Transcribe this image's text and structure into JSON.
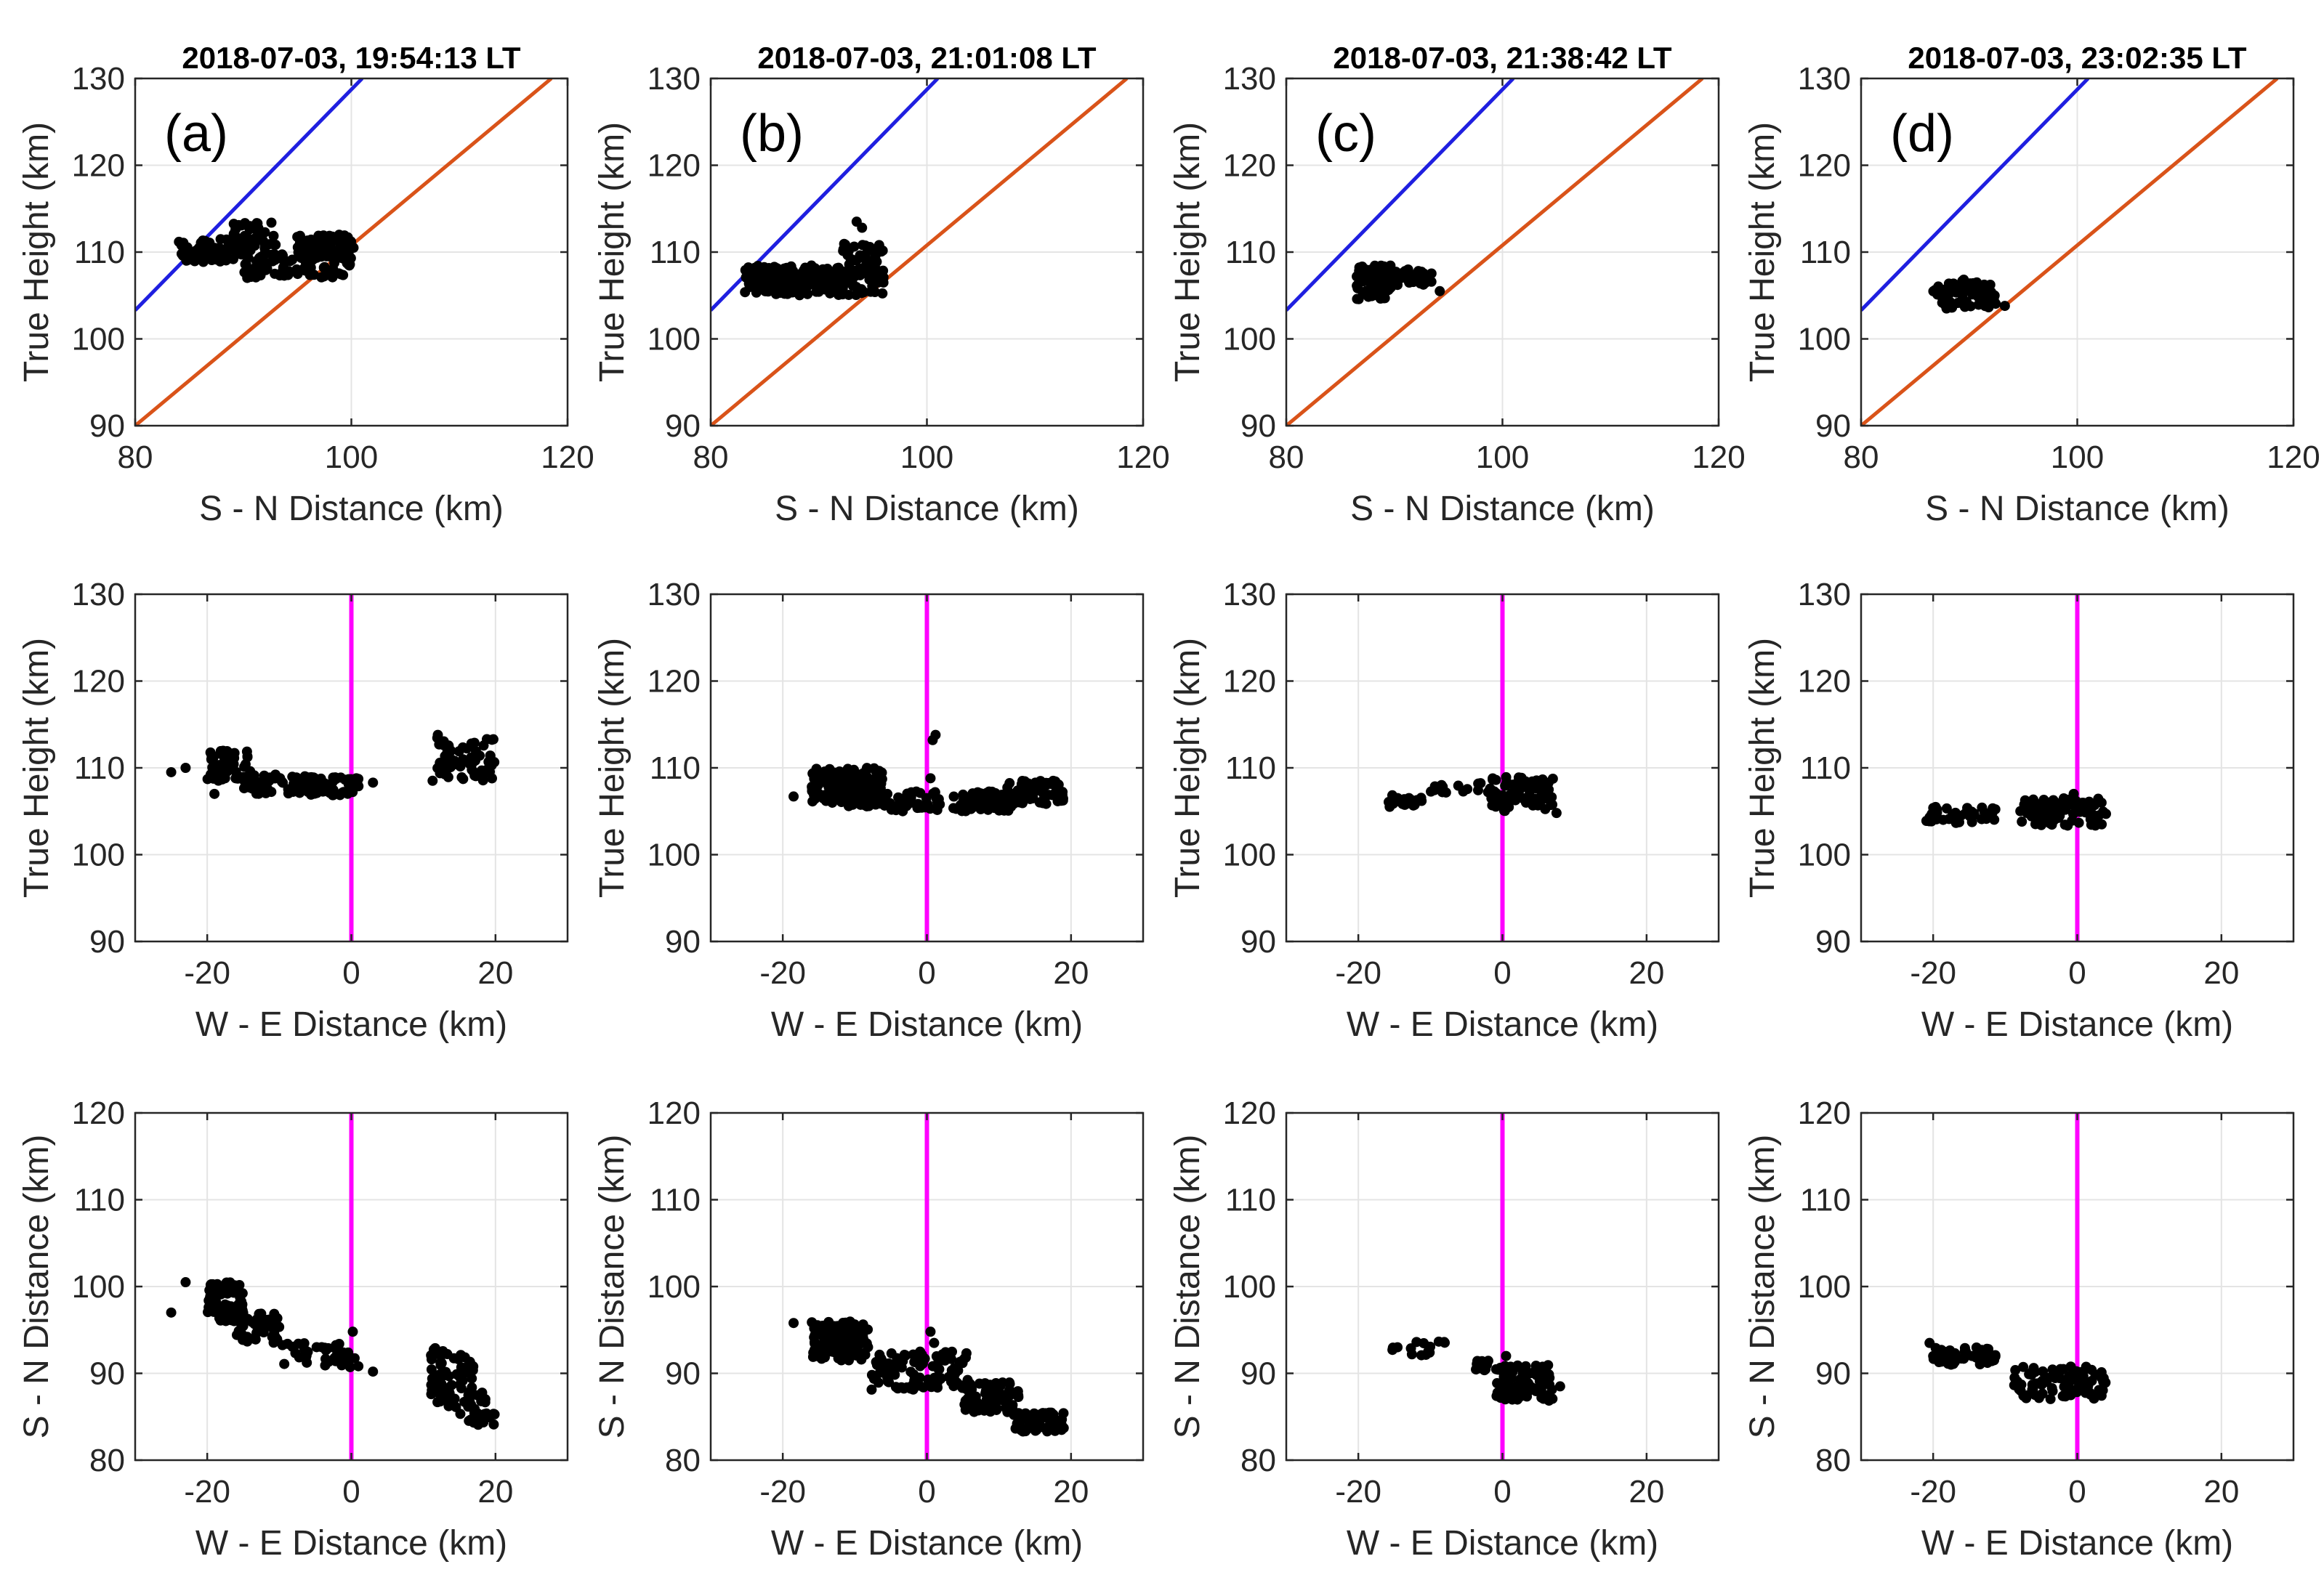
{
  "chart_data": [
    {
      "id": "a",
      "col": 0,
      "row": 0,
      "type": "scatter",
      "title": "2018-07-03, 19:54:13 LT",
      "panel_label": "(a)",
      "xlabel": "S - N  Distance (km)",
      "ylabel": "True Height (km)",
      "xlim": [
        80,
        120
      ],
      "ylim": [
        90,
        130
      ],
      "xticks": [
        80,
        100,
        120
      ],
      "yticks": [
        90,
        100,
        110,
        120,
        130
      ],
      "grid": true,
      "lines": [
        {
          "name": "upper-limit",
          "color": "#1f1fe0",
          "x": [
            80,
            101
          ],
          "y": [
            103.3,
            130
          ]
        },
        {
          "name": "lower-limit",
          "color": "#d95319",
          "x": [
            80,
            118.5
          ],
          "y": [
            90,
            130
          ]
        }
      ],
      "clusters": [
        {
          "n": 60,
          "x": [
            84,
            90
          ],
          "y": [
            108.8,
            111.5
          ],
          "seed": 11
        },
        {
          "n": 50,
          "x": [
            89,
            93
          ],
          "y": [
            110,
            113.5
          ],
          "seed": 12
        },
        {
          "n": 110,
          "x": [
            90,
            100
          ],
          "y": [
            107,
            110
          ],
          "seed": 13
        },
        {
          "n": 70,
          "x": [
            95,
            100
          ],
          "y": [
            109.5,
            112
          ],
          "seed": 14
        }
      ],
      "points": [
        [
          84.3,
          109.8
        ],
        [
          100.2,
          110.5
        ]
      ]
    },
    {
      "id": "b",
      "col": 1,
      "row": 0,
      "type": "scatter",
      "title": "2018-07-03, 21:01:08 LT",
      "panel_label": "(b)",
      "xlabel": "S - N  Distance (km)",
      "ylabel": "True Height (km)",
      "xlim": [
        80,
        120
      ],
      "ylim": [
        90,
        130
      ],
      "xticks": [
        80,
        100,
        120
      ],
      "yticks": [
        90,
        100,
        110,
        120,
        130
      ],
      "grid": true,
      "lines": [
        {
          "name": "upper-limit",
          "color": "#1f1fe0",
          "x": [
            80,
            101
          ],
          "y": [
            103.3,
            130
          ]
        },
        {
          "name": "lower-limit",
          "color": "#d95319",
          "x": [
            80,
            118.5
          ],
          "y": [
            90,
            130
          ]
        }
      ],
      "clusters": [
        {
          "n": 90,
          "x": [
            83,
            88
          ],
          "y": [
            105.3,
            108.5
          ],
          "seed": 21
        },
        {
          "n": 130,
          "x": [
            86,
            96
          ],
          "y": [
            105,
            108.5
          ],
          "seed": 22
        },
        {
          "n": 50,
          "x": [
            92,
            96
          ],
          "y": [
            107,
            111
          ],
          "seed": 23
        }
      ],
      "points": [
        [
          93.5,
          113.5
        ],
        [
          94,
          112.8
        ],
        [
          95.5,
          106.5
        ]
      ]
    },
    {
      "id": "c",
      "col": 2,
      "row": 0,
      "type": "scatter",
      "title": "2018-07-03, 21:38:42 LT",
      "panel_label": "(c)",
      "xlabel": "S - N  Distance (km)",
      "ylabel": "True Height (km)",
      "xlim": [
        80,
        120
      ],
      "ylim": [
        90,
        130
      ],
      "xticks": [
        80,
        100,
        120
      ],
      "yticks": [
        90,
        100,
        110,
        120,
        130
      ],
      "grid": true,
      "lines": [
        {
          "name": "upper-limit",
          "color": "#1f1fe0",
          "x": [
            80,
            101
          ],
          "y": [
            103.3,
            130
          ]
        },
        {
          "name": "lower-limit",
          "color": "#d95319",
          "x": [
            80,
            118.5
          ],
          "y": [
            90,
            130
          ]
        }
      ],
      "clusters": [
        {
          "n": 80,
          "x": [
            86.5,
            90
          ],
          "y": [
            104.5,
            108.5
          ],
          "seed": 31
        },
        {
          "n": 40,
          "x": [
            89,
            93.5
          ],
          "y": [
            106,
            108
          ],
          "seed": 32
        }
      ],
      "points": [
        [
          94.2,
          105.5
        ]
      ]
    },
    {
      "id": "d",
      "col": 3,
      "row": 0,
      "type": "scatter",
      "title": "2018-07-03, 23:02:35 LT",
      "panel_label": "(d)",
      "xlabel": "S - N  Distance (km)",
      "ylabel": "True Height (km)",
      "xlim": [
        80,
        120
      ],
      "ylim": [
        90,
        130
      ],
      "xticks": [
        80,
        100,
        120
      ],
      "yticks": [
        90,
        100,
        110,
        120,
        130
      ],
      "grid": true,
      "lines": [
        {
          "name": "upper-limit",
          "color": "#1f1fe0",
          "x": [
            80,
            101
          ],
          "y": [
            103.3,
            130
          ]
        },
        {
          "name": "lower-limit",
          "color": "#d95319",
          "x": [
            80,
            118.5
          ],
          "y": [
            90,
            130
          ]
        }
      ],
      "clusters": [
        {
          "n": 70,
          "x": [
            86.5,
            92.5
          ],
          "y": [
            103.5,
            106.5
          ],
          "seed": 41
        },
        {
          "n": 15,
          "x": [
            89,
            91
          ],
          "y": [
            105.5,
            107
          ],
          "seed": 42
        }
      ],
      "points": [
        [
          93.3,
          103.8
        ]
      ]
    },
    {
      "id": "a-we-height",
      "col": 0,
      "row": 1,
      "type": "scatter",
      "xlabel": "W - E  Distance (km)",
      "ylabel": "True Height (km)",
      "xlim": [
        -30,
        30
      ],
      "ylim": [
        90,
        130
      ],
      "xticks": [
        -20,
        0,
        20
      ],
      "yticks": [
        90,
        100,
        110,
        120,
        130
      ],
      "grid": true,
      "vline": {
        "x": 0,
        "color": "#ff00ff"
      },
      "clusters": [
        {
          "n": 60,
          "x": [
            -20,
            -14
          ],
          "y": [
            108.5,
            112
          ],
          "seed": 51
        },
        {
          "n": 60,
          "x": [
            -15,
            -5
          ],
          "y": [
            107,
            109.5
          ],
          "seed": 52
        },
        {
          "n": 50,
          "x": [
            -6,
            1
          ],
          "y": [
            106.8,
            109
          ],
          "seed": 53
        },
        {
          "n": 60,
          "x": [
            11,
            20
          ],
          "y": [
            108.5,
            113.5
          ],
          "seed": 54
        }
      ],
      "points": [
        [
          -25,
          109.5
        ],
        [
          -23,
          110
        ],
        [
          -19,
          107
        ],
        [
          3,
          108.3
        ],
        [
          12,
          113.8
        ]
      ]
    },
    {
      "id": "b-we-height",
      "col": 1,
      "row": 1,
      "type": "scatter",
      "xlabel": "W - E  Distance (km)",
      "ylabel": "True Height (km)",
      "xlim": [
        -30,
        30
      ],
      "ylim": [
        90,
        130
      ],
      "xticks": [
        -20,
        0,
        20
      ],
      "yticks": [
        90,
        100,
        110,
        120,
        130
      ],
      "grid": true,
      "vline": {
        "x": 0,
        "color": "#ff00ff"
      },
      "clusters": [
        {
          "n": 160,
          "x": [
            -16,
            -6
          ],
          "y": [
            105.5,
            110
          ],
          "seed": 61
        },
        {
          "n": 110,
          "x": [
            -6,
            12
          ],
          "y": [
            105,
            107.3
          ],
          "seed": 62
        },
        {
          "n": 70,
          "x": [
            11,
            19
          ],
          "y": [
            105.8,
            108.5
          ],
          "seed": 63
        }
      ],
      "points": [
        [
          -18.5,
          106.7
        ],
        [
          0.8,
          113.2
        ],
        [
          1.2,
          113.8
        ],
        [
          0.5,
          108.8
        ]
      ]
    },
    {
      "id": "c-we-height",
      "col": 2,
      "row": 1,
      "type": "scatter",
      "xlabel": "W - E  Distance (km)",
      "ylabel": "True Height (km)",
      "xlim": [
        -30,
        30
      ],
      "ylim": [
        90,
        130
      ],
      "xticks": [
        -20,
        0,
        20
      ],
      "yticks": [
        90,
        100,
        110,
        120,
        130
      ],
      "grid": true,
      "vline": {
        "x": 0,
        "color": "#ff00ff"
      },
      "clusters": [
        {
          "n": 20,
          "x": [
            -16,
            -11
          ],
          "y": [
            105.5,
            107
          ],
          "seed": 71
        },
        {
          "n": 15,
          "x": [
            -10,
            -2
          ],
          "y": [
            107,
            108.3
          ],
          "seed": 72
        },
        {
          "n": 80,
          "x": [
            -2,
            7
          ],
          "y": [
            105,
            109
          ],
          "seed": 73
        }
      ],
      "points": [
        [
          7.5,
          104.8
        ]
      ]
    },
    {
      "id": "d-we-height",
      "col": 3,
      "row": 1,
      "type": "scatter",
      "xlabel": "W - E  Distance (km)",
      "ylabel": "True Height (km)",
      "xlim": [
        -30,
        30
      ],
      "ylim": [
        90,
        130
      ],
      "xticks": [
        -20,
        0,
        20
      ],
      "yticks": [
        90,
        100,
        110,
        120,
        130
      ],
      "grid": true,
      "vline": {
        "x": 0,
        "color": "#ff00ff"
      },
      "clusters": [
        {
          "n": 40,
          "x": [
            -21,
            -11
          ],
          "y": [
            103.5,
            105.5
          ],
          "seed": 81
        },
        {
          "n": 90,
          "x": [
            -9,
            4
          ],
          "y": [
            103.3,
            106.5
          ],
          "seed": 82
        }
      ],
      "points": [
        [
          -0.5,
          107
        ]
      ]
    },
    {
      "id": "a-we-sn",
      "col": 0,
      "row": 2,
      "type": "scatter",
      "xlabel": "W - E  Distance (km)",
      "ylabel": "S - N  Distance (km)",
      "xlim": [
        -30,
        30
      ],
      "ylim": [
        80,
        120
      ],
      "xticks": [
        -20,
        0,
        20
      ],
      "yticks": [
        80,
        90,
        100,
        110,
        120
      ],
      "grid": true,
      "vline": {
        "x": 0,
        "color": "#ff00ff"
      },
      "clusters": [
        {
          "n": 80,
          "x": [
            -20,
            -15
          ],
          "y": [
            96,
            100.5
          ],
          "seed": 91
        },
        {
          "n": 50,
          "x": [
            -16,
            -10
          ],
          "y": [
            93.5,
            97
          ],
          "seed": 92
        },
        {
          "n": 40,
          "x": [
            -10,
            1
          ],
          "y": [
            90.5,
            93.5
          ],
          "seed": 93
        },
        {
          "n": 70,
          "x": [
            11,
            17
          ],
          "y": [
            86,
            93
          ],
          "seed": 94
        },
        {
          "n": 30,
          "x": [
            15,
            20
          ],
          "y": [
            84,
            88
          ],
          "seed": 95
        }
      ],
      "points": [
        [
          -25,
          97
        ],
        [
          -23,
          100.5
        ],
        [
          0.2,
          94.8
        ],
        [
          3,
          90.2
        ]
      ]
    },
    {
      "id": "b-we-sn",
      "col": 1,
      "row": 2,
      "type": "scatter",
      "xlabel": "W - E  Distance (km)",
      "ylabel": "S - N  Distance (km)",
      "xlim": [
        -30,
        30
      ],
      "ylim": [
        80,
        120
      ],
      "xticks": [
        -20,
        0,
        20
      ],
      "yticks": [
        80,
        90,
        100,
        110,
        120
      ],
      "grid": true,
      "vline": {
        "x": 0,
        "color": "#ff00ff"
      },
      "clusters": [
        {
          "n": 140,
          "x": [
            -16,
            -8
          ],
          "y": [
            91.5,
            96
          ],
          "seed": 101
        },
        {
          "n": 100,
          "x": [
            -8,
            6
          ],
          "y": [
            88,
            92.5
          ],
          "seed": 102
        },
        {
          "n": 80,
          "x": [
            5,
            13
          ],
          "y": [
            85.5,
            89
          ],
          "seed": 103
        },
        {
          "n": 60,
          "x": [
            12,
            19
          ],
          "y": [
            83.3,
            85.5
          ],
          "seed": 104
        }
      ],
      "points": [
        [
          -18.5,
          95.8
        ],
        [
          0.5,
          94.8
        ],
        [
          1,
          93.5
        ]
      ]
    },
    {
      "id": "c-we-sn",
      "col": 2,
      "row": 2,
      "type": "scatter",
      "xlabel": "W - E  Distance (km)",
      "ylabel": "S - N  Distance (km)",
      "xlim": [
        -30,
        30
      ],
      "ylim": [
        80,
        120
      ],
      "xticks": [
        -20,
        0,
        20
      ],
      "yticks": [
        80,
        90,
        100,
        110,
        120
      ],
      "grid": true,
      "vline": {
        "x": 0,
        "color": "#ff00ff"
      },
      "clusters": [
        {
          "n": 15,
          "x": [
            -16,
            -8
          ],
          "y": [
            92,
            94
          ],
          "seed": 111
        },
        {
          "n": 10,
          "x": [
            -4,
            -1
          ],
          "y": [
            90,
            91.5
          ],
          "seed": 112
        },
        {
          "n": 90,
          "x": [
            -1,
            7
          ],
          "y": [
            86.8,
            91
          ],
          "seed": 113
        }
      ],
      "points": [
        [
          8,
          88.5
        ],
        [
          0.5,
          92
        ]
      ]
    },
    {
      "id": "d-we-sn",
      "col": 3,
      "row": 2,
      "type": "scatter",
      "xlabel": "W - E  Distance (km)",
      "ylabel": "S - N  Distance (km)",
      "xlim": [
        -30,
        30
      ],
      "ylim": [
        80,
        120
      ],
      "xticks": [
        -20,
        0,
        20
      ],
      "yticks": [
        80,
        90,
        100,
        110,
        120
      ],
      "grid": true,
      "vline": {
        "x": 0,
        "color": "#ff00ff"
      },
      "clusters": [
        {
          "n": 50,
          "x": [
            -20,
            -11
          ],
          "y": [
            91,
            93
          ],
          "seed": 121
        },
        {
          "n": 100,
          "x": [
            -9,
            4
          ],
          "y": [
            87,
            90.8
          ],
          "seed": 122
        }
      ],
      "points": [
        [
          -20.5,
          93.5
        ]
      ]
    }
  ]
}
